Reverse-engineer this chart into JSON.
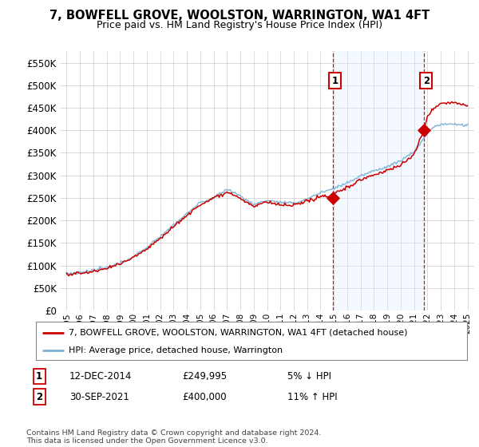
{
  "title": "7, BOWFELL GROVE, WOOLSTON, WARRINGTON, WA1 4FT",
  "subtitle": "Price paid vs. HM Land Registry's House Price Index (HPI)",
  "bg_color": "#ffffff",
  "plot_bg_color": "#ffffff",
  "shade_color": "#ddeeff",
  "legend_line1": "7, BOWFELL GROVE, WOOLSTON, WARRINGTON, WA1 4FT (detached house)",
  "legend_line2": "HPI: Average price, detached house, Warrington",
  "annotation1_date": "12-DEC-2014",
  "annotation1_price": "£249,995",
  "annotation1_hpi": "5% ↓ HPI",
  "annotation2_date": "30-SEP-2021",
  "annotation2_price": "£400,000",
  "annotation2_hpi": "11% ↑ HPI",
  "footer": "Contains HM Land Registry data © Crown copyright and database right 2024.\nThis data is licensed under the Open Government Licence v3.0.",
  "sale1_x": 2014.95,
  "sale2_x": 2021.75,
  "hpi_color": "#7ab0d4",
  "price_color": "#cc0000",
  "vline_color": "#cc0000",
  "annotation_box_color": "#cc0000",
  "ylim": [
    0,
    575000
  ],
  "xlim": [
    1994.5,
    2025.5
  ],
  "grid_color": "#cccccc"
}
